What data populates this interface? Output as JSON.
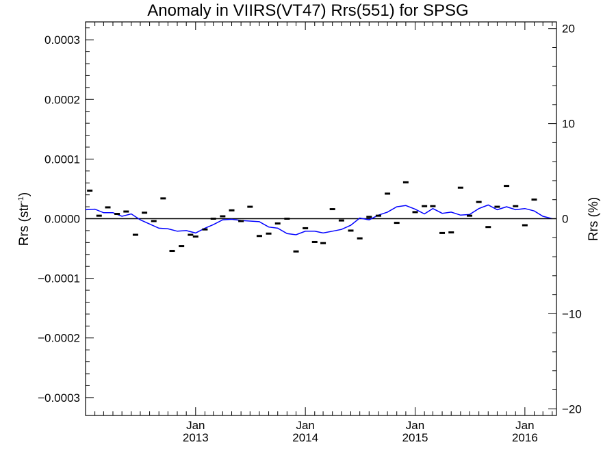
{
  "chart_data": {
    "type": "line",
    "title": "Anomaly in VIIRS(VT47) Rrs(551) for SPSG",
    "ylabel_left": {
      "text": "Rrs (str",
      "sup": "-1",
      "suffix": ")"
    },
    "ylabel_right": "Rrs (%)",
    "ylim_left": [
      -0.00033,
      0.00033
    ],
    "ylim_right": [
      -20.7,
      20.7
    ],
    "xlim": [
      "2012-01-01",
      "2016-04-15"
    ],
    "yticks_left": [
      {
        "value": 0.0003,
        "label": "0.0003"
      },
      {
        "value": 0.0002,
        "label": "0.0002"
      },
      {
        "value": 0.0001,
        "label": "0.0001"
      },
      {
        "value": 0.0,
        "label": "0.0000"
      },
      {
        "value": -0.0001,
        "label": "−0.0001"
      },
      {
        "value": -0.0002,
        "label": "−0.0002"
      },
      {
        "value": -0.0003,
        "label": "−0.0003"
      }
    ],
    "yticks_right": [
      {
        "value": 20,
        "label": "20"
      },
      {
        "value": 10,
        "label": "10"
      },
      {
        "value": 0,
        "label": "0"
      },
      {
        "value": -10,
        "label": "−10"
      },
      {
        "value": -20,
        "label": "−20"
      }
    ],
    "xticks": [
      {
        "date": "2013-01-01",
        "month": "Jan",
        "year": "2013"
      },
      {
        "date": "2014-01-01",
        "month": "Jan",
        "year": "2014"
      },
      {
        "date": "2015-01-01",
        "month": "Jan",
        "year": "2015"
      },
      {
        "date": "2016-01-01",
        "month": "Jan",
        "year": "2016"
      }
    ],
    "grid": false,
    "zero_line": true,
    "series": [
      {
        "kind": "points",
        "color": "#000000",
        "points": [
          {
            "x": "2012-01-15",
            "y": 4.7e-05
          },
          {
            "x": "2012-02-15",
            "y": 5e-06
          },
          {
            "x": "2012-03-15",
            "y": 1.9e-05
          },
          {
            "x": "2012-04-15",
            "y": 8e-06
          },
          {
            "x": "2012-05-15",
            "y": 1.2e-05
          },
          {
            "x": "2012-06-15",
            "y": -2.7e-05
          },
          {
            "x": "2012-07-15",
            "y": 1e-05
          },
          {
            "x": "2012-08-15",
            "y": -4e-06
          },
          {
            "x": "2012-09-15",
            "y": 3.4e-05
          },
          {
            "x": "2012-10-15",
            "y": -5.4e-05
          },
          {
            "x": "2012-11-15",
            "y": -4.6e-05
          },
          {
            "x": "2012-12-15",
            "y": -2.7e-05
          },
          {
            "x": "2013-01-01",
            "y": -3e-05
          },
          {
            "x": "2013-02-01",
            "y": -1.8e-05
          },
          {
            "x": "2013-03-01",
            "y": 0.0
          },
          {
            "x": "2013-04-01",
            "y": 4e-06
          },
          {
            "x": "2013-05-01",
            "y": 1.4e-05
          },
          {
            "x": "2013-06-01",
            "y": -4e-06
          },
          {
            "x": "2013-07-01",
            "y": 2e-05
          },
          {
            "x": "2013-08-01",
            "y": -2.9e-05
          },
          {
            "x": "2013-09-01",
            "y": -2.5e-05
          },
          {
            "x": "2013-10-01",
            "y": -8e-06
          },
          {
            "x": "2013-11-01",
            "y": 0.0
          },
          {
            "x": "2013-12-01",
            "y": -5.5e-05
          },
          {
            "x": "2014-01-01",
            "y": -1.6e-05
          },
          {
            "x": "2014-02-01",
            "y": -3.9e-05
          },
          {
            "x": "2014-03-01",
            "y": -4.1e-05
          },
          {
            "x": "2014-04-01",
            "y": 1.6e-05
          },
          {
            "x": "2014-05-01",
            "y": -3e-06
          },
          {
            "x": "2014-06-01",
            "y": -2e-05
          },
          {
            "x": "2014-07-01",
            "y": -3.3e-05
          },
          {
            "x": "2014-08-01",
            "y": 3e-06
          },
          {
            "x": "2014-09-01",
            "y": 5e-06
          },
          {
            "x": "2014-10-01",
            "y": 4.2e-05
          },
          {
            "x": "2014-11-01",
            "y": -7e-06
          },
          {
            "x": "2014-12-01",
            "y": 6.1e-05
          },
          {
            "x": "2015-01-01",
            "y": 1.1e-05
          },
          {
            "x": "2015-02-01",
            "y": 2.1e-05
          },
          {
            "x": "2015-03-01",
            "y": 2.1e-05
          },
          {
            "x": "2015-04-01",
            "y": -2.4e-05
          },
          {
            "x": "2015-05-01",
            "y": -2.3e-05
          },
          {
            "x": "2015-06-01",
            "y": 5.2e-05
          },
          {
            "x": "2015-07-01",
            "y": 5e-06
          },
          {
            "x": "2015-08-01",
            "y": 2.8e-05
          },
          {
            "x": "2015-09-01",
            "y": -1.4e-05
          },
          {
            "x": "2015-10-01",
            "y": 2e-05
          },
          {
            "x": "2015-11-01",
            "y": 5.5e-05
          },
          {
            "x": "2015-12-01",
            "y": 2.1e-05
          },
          {
            "x": "2016-01-01",
            "y": -1.1e-05
          },
          {
            "x": "2016-02-01",
            "y": 3.2e-05
          }
        ]
      },
      {
        "kind": "line",
        "color": "#0000ff",
        "points": [
          {
            "x": "2012-01-01",
            "y": 1.5e-05
          },
          {
            "x": "2012-02-01",
            "y": 1.6e-05
          },
          {
            "x": "2012-03-01",
            "y": 1e-05
          },
          {
            "x": "2012-04-01",
            "y": 1e-05
          },
          {
            "x": "2012-05-01",
            "y": 4e-06
          },
          {
            "x": "2012-06-01",
            "y": 8e-06
          },
          {
            "x": "2012-07-01",
            "y": -2e-06
          },
          {
            "x": "2012-08-01",
            "y": -9e-06
          },
          {
            "x": "2012-09-01",
            "y": -1.6e-05
          },
          {
            "x": "2012-10-01",
            "y": -1.7e-05
          },
          {
            "x": "2012-11-01",
            "y": -2.1e-05
          },
          {
            "x": "2012-12-01",
            "y": -2e-05
          },
          {
            "x": "2013-01-01",
            "y": -2.4e-05
          },
          {
            "x": "2013-02-01",
            "y": -1.6e-05
          },
          {
            "x": "2013-03-01",
            "y": -1e-05
          },
          {
            "x": "2013-04-01",
            "y": -2e-06
          },
          {
            "x": "2013-05-01",
            "y": -1e-06
          },
          {
            "x": "2013-06-01",
            "y": -3e-06
          },
          {
            "x": "2013-07-01",
            "y": -4e-06
          },
          {
            "x": "2013-08-01",
            "y": -5e-06
          },
          {
            "x": "2013-09-01",
            "y": -1.4e-05
          },
          {
            "x": "2013-10-01",
            "y": -1.6e-05
          },
          {
            "x": "2013-11-01",
            "y": -2.5e-05
          },
          {
            "x": "2013-12-01",
            "y": -2.7e-05
          },
          {
            "x": "2014-01-01",
            "y": -2.1e-05
          },
          {
            "x": "2014-02-01",
            "y": -2.1e-05
          },
          {
            "x": "2014-03-01",
            "y": -2.4e-05
          },
          {
            "x": "2014-04-01",
            "y": -2.1e-05
          },
          {
            "x": "2014-05-01",
            "y": -1.8e-05
          },
          {
            "x": "2014-06-01",
            "y": -1.1e-05
          },
          {
            "x": "2014-07-01",
            "y": 1e-06
          },
          {
            "x": "2014-08-01",
            "y": -2e-06
          },
          {
            "x": "2014-09-01",
            "y": 6e-06
          },
          {
            "x": "2014-10-01",
            "y": 1.1e-05
          },
          {
            "x": "2014-11-01",
            "y": 2e-05
          },
          {
            "x": "2014-12-01",
            "y": 2.2e-05
          },
          {
            "x": "2015-01-01",
            "y": 1.6e-05
          },
          {
            "x": "2015-02-01",
            "y": 8e-06
          },
          {
            "x": "2015-03-01",
            "y": 1.7e-05
          },
          {
            "x": "2015-04-01",
            "y": 9e-06
          },
          {
            "x": "2015-05-01",
            "y": 1.1e-05
          },
          {
            "x": "2015-06-01",
            "y": 6e-06
          },
          {
            "x": "2015-07-01",
            "y": 7e-06
          },
          {
            "x": "2015-08-01",
            "y": 1.7e-05
          },
          {
            "x": "2015-09-01",
            "y": 2.3e-05
          },
          {
            "x": "2015-10-01",
            "y": 1.5e-05
          },
          {
            "x": "2015-11-01",
            "y": 2e-05
          },
          {
            "x": "2015-12-01",
            "y": 1.5e-05
          },
          {
            "x": "2016-01-01",
            "y": 1.7e-05
          },
          {
            "x": "2016-02-01",
            "y": 1.3e-05
          },
          {
            "x": "2016-03-01",
            "y": 4e-06
          },
          {
            "x": "2016-04-01",
            "y": 0.0
          }
        ]
      }
    ]
  }
}
